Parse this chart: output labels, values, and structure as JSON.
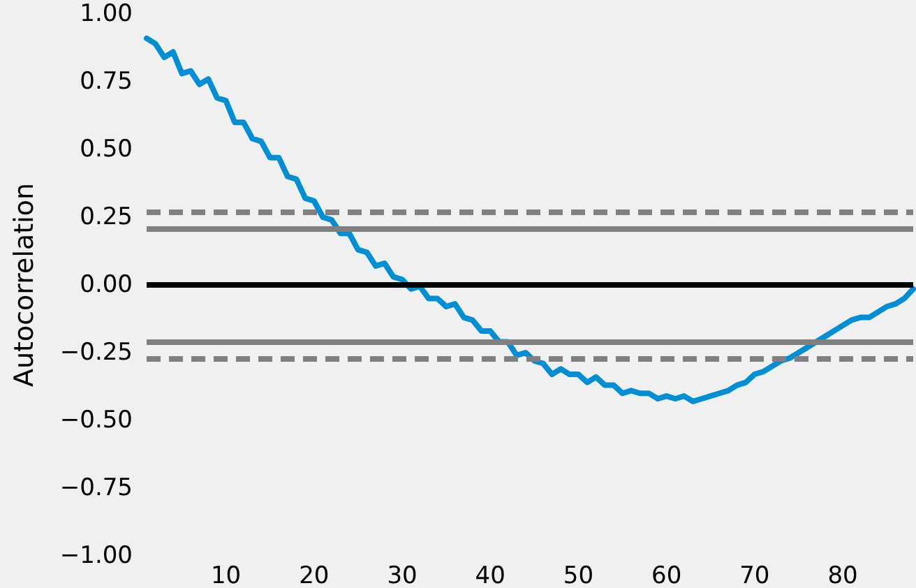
{
  "chart_data": {
    "type": "line",
    "ylabel": "Autocorrelation",
    "x": [
      1,
      2,
      3,
      4,
      5,
      6,
      7,
      8,
      9,
      10,
      11,
      12,
      13,
      14,
      15,
      16,
      17,
      18,
      19,
      20,
      21,
      22,
      23,
      24,
      25,
      26,
      27,
      28,
      29,
      30,
      31,
      32,
      33,
      34,
      35,
      36,
      37,
      38,
      39,
      40,
      41,
      42,
      43,
      44,
      45,
      46,
      47,
      48,
      49,
      50,
      51,
      52,
      53,
      54,
      55,
      56,
      57,
      58,
      59,
      60,
      61,
      62,
      63,
      64,
      65,
      66,
      67,
      68,
      69,
      70,
      71,
      72,
      73,
      74,
      75,
      76,
      77,
      78,
      79,
      80,
      81,
      82,
      83,
      84,
      85,
      86,
      87,
      88
    ],
    "series": [
      {
        "color": "#008fd5",
        "values": [
          0.91,
          0.89,
          0.84,
          0.86,
          0.78,
          0.79,
          0.74,
          0.76,
          0.69,
          0.68,
          0.6,
          0.6,
          0.54,
          0.53,
          0.47,
          0.47,
          0.4,
          0.39,
          0.32,
          0.31,
          0.25,
          0.24,
          0.19,
          0.19,
          0.13,
          0.12,
          0.07,
          0.08,
          0.03,
          0.02,
          -0.015,
          -0.005,
          -0.05,
          -0.05,
          -0.08,
          -0.07,
          -0.12,
          -0.13,
          -0.17,
          -0.17,
          -0.21,
          -0.21,
          -0.26,
          -0.25,
          -0.28,
          -0.29,
          -0.33,
          -0.31,
          -0.33,
          -0.33,
          -0.36,
          -0.34,
          -0.37,
          -0.37,
          -0.4,
          -0.39,
          -0.4,
          -0.4,
          -0.42,
          -0.41,
          -0.42,
          -0.41,
          -0.43,
          -0.42,
          -0.41,
          -0.4,
          -0.39,
          -0.37,
          -0.36,
          -0.33,
          -0.32,
          -0.3,
          -0.28,
          -0.27,
          -0.25,
          -0.23,
          -0.21,
          -0.19,
          -0.17,
          -0.15,
          -0.13,
          -0.12,
          -0.12,
          -0.1,
          -0.08,
          -0.07,
          -0.05,
          -0.015
        ]
      }
    ],
    "xlim": [
      1,
      88
    ],
    "xticks": [
      10,
      20,
      30,
      40,
      50,
      60,
      70,
      80
    ],
    "ylim": [
      -1,
      1
    ],
    "yticks": [
      {
        "value": -1,
        "label": "−1.00"
      },
      {
        "value": -0.75,
        "label": "−0.75"
      },
      {
        "value": -0.5,
        "label": "−0.50"
      },
      {
        "value": -0.25,
        "label": "−0.25"
      },
      {
        "value": 0,
        "label": "0.00"
      },
      {
        "value": 0.25,
        "label": "0.25"
      },
      {
        "value": 0.5,
        "label": "0.50"
      },
      {
        "value": 0.75,
        "label": "0.75"
      },
      {
        "value": 1,
        "label": "1.00"
      }
    ],
    "ref_lines": [
      {
        "axis": "y",
        "value": 0.2746,
        "color": "#808080",
        "line_style": "dashed"
      },
      {
        "axis": "y",
        "value": 0.2089,
        "color": "#808080",
        "line_style": "solid"
      },
      {
        "axis": "y",
        "value": 0,
        "color": "#000000",
        "line_style": "solid"
      },
      {
        "axis": "y",
        "value": -0.2089,
        "color": "#808080",
        "line_style": "solid"
      },
      {
        "axis": "y",
        "value": -0.2746,
        "color": "#808080",
        "line_style": "dashed"
      }
    ],
    "marker": "none",
    "line_style": "solid"
  }
}
